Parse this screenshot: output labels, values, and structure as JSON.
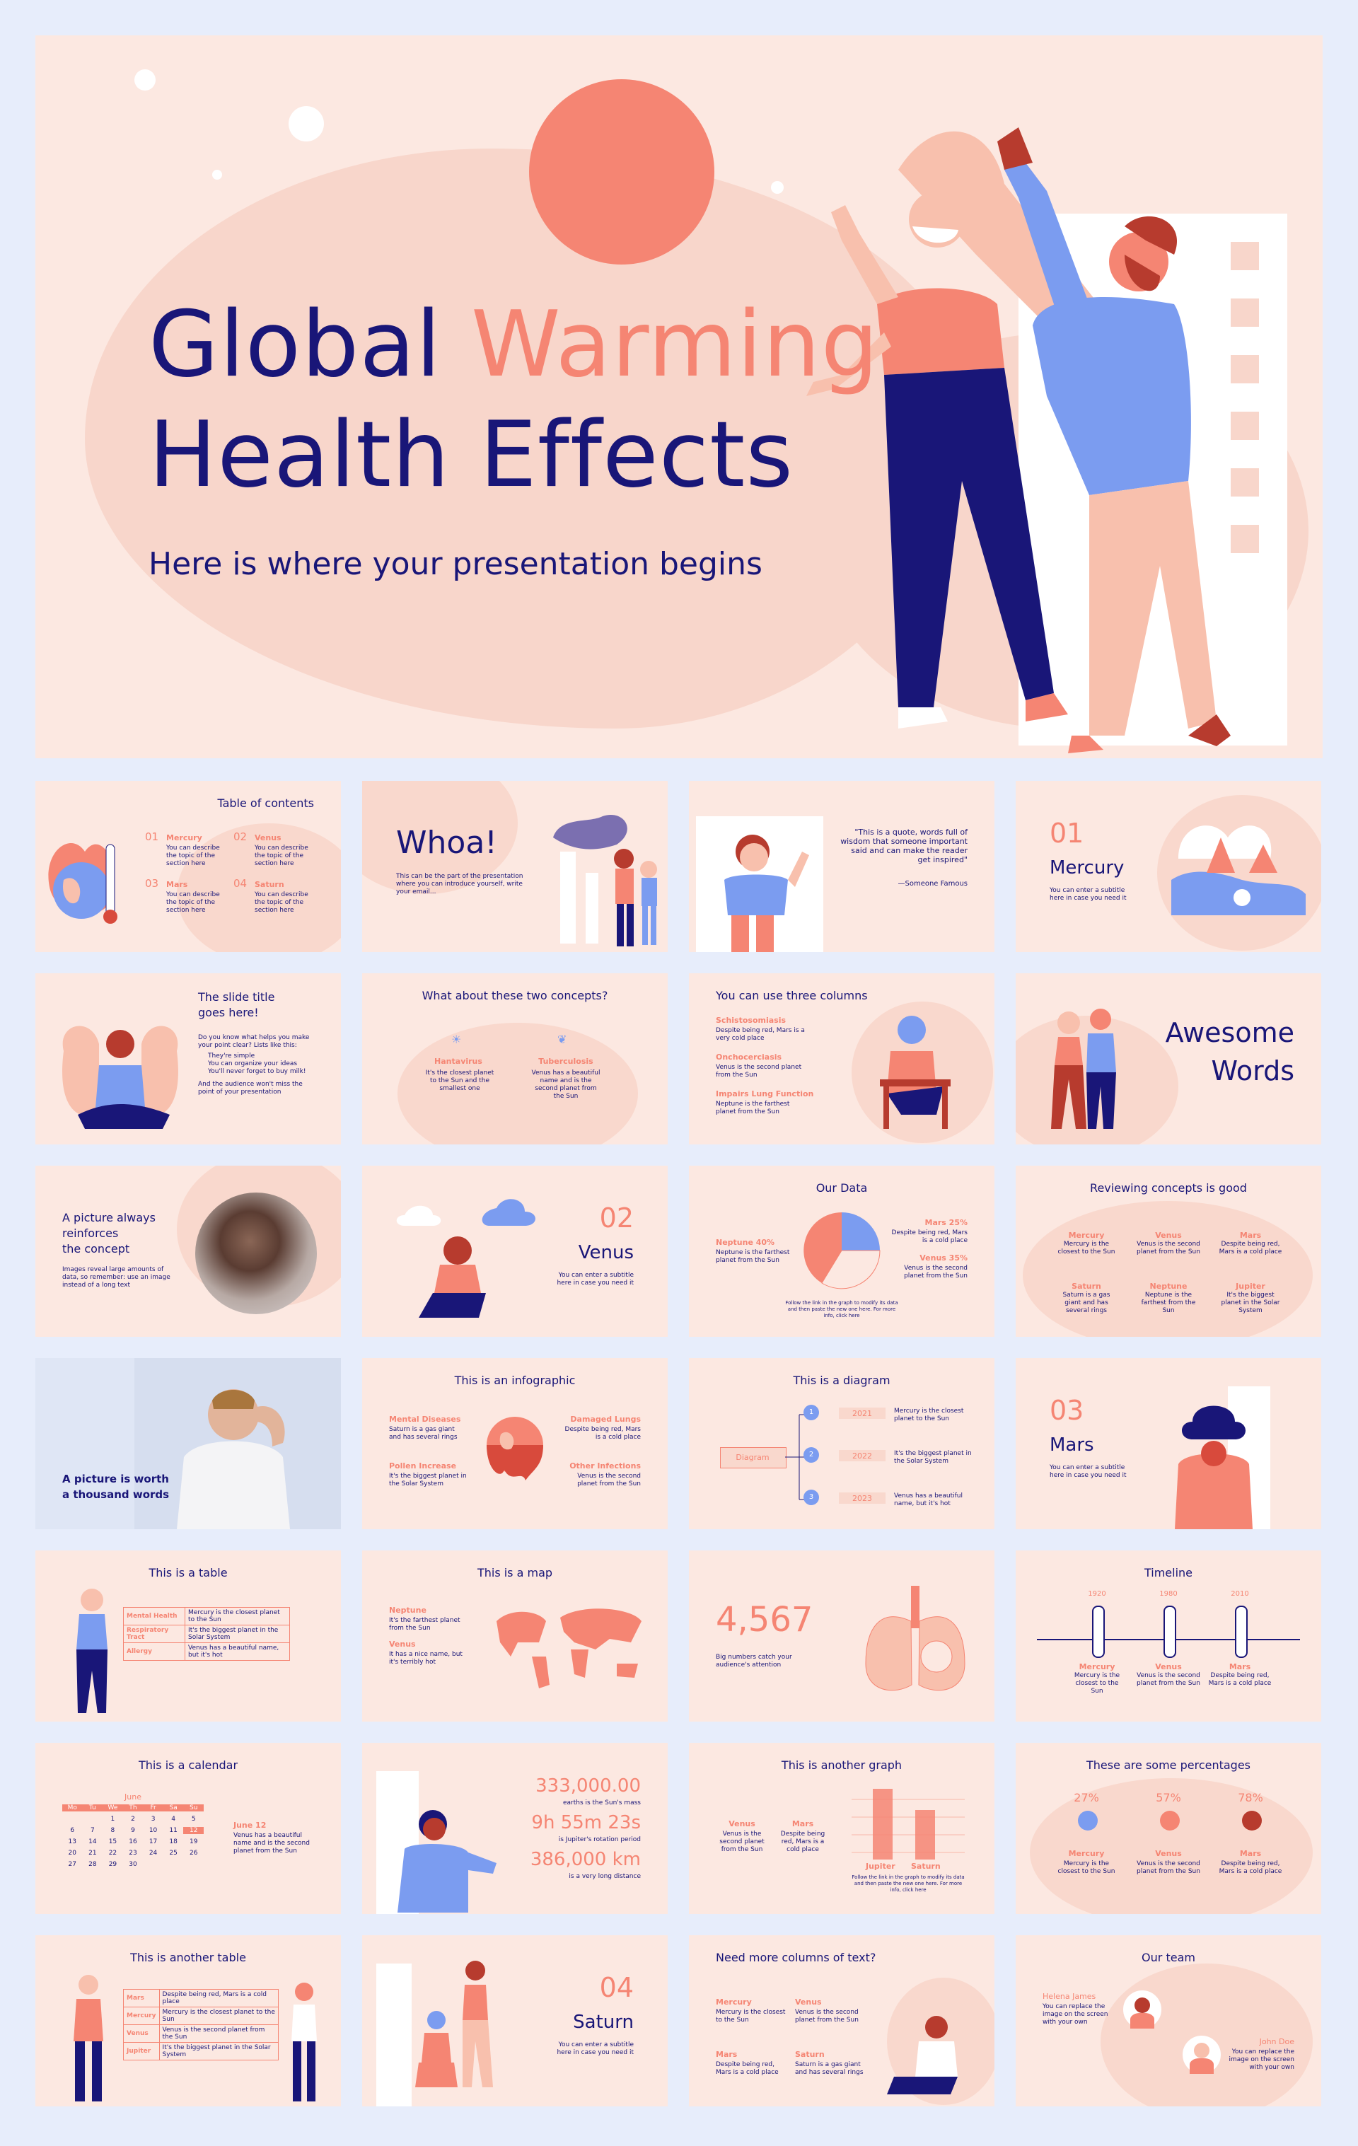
{
  "hero": {
    "title_line1_a": "Global ",
    "title_line1_b": "Warming",
    "title_line2": "Health Effects",
    "subtitle": "Here is where your presentation begins"
  },
  "slides": {
    "toc": {
      "title": "Table of contents",
      "items": [
        {
          "num": "01",
          "label": "Mercury",
          "desc": "You can describe the topic of the section here"
        },
        {
          "num": "02",
          "label": "Venus",
          "desc": "You can describe the topic of the section here"
        },
        {
          "num": "03",
          "label": "Mars",
          "desc": "You can describe the topic of the section here"
        },
        {
          "num": "04",
          "label": "Saturn",
          "desc": "You can describe the topic of the section here"
        }
      ]
    },
    "whoa": {
      "title": "Whoa!",
      "desc": "This can be the part of the presentation where you can introduce yourself, write your email..."
    },
    "quote": {
      "text": "\"This is a quote, words full of wisdom that someone important said and can make the reader get inspired\"",
      "author": "—Someone Famous"
    },
    "sec01": {
      "num": "01",
      "title": "Mercury",
      "desc": "You can enter a subtitle here in case you need it"
    },
    "slidetitle": {
      "title1": "The slide title",
      "title2": "goes here!",
      "intro": "Do you know what helps you make your point clear? Lists like this:",
      "bullets": [
        "They're simple",
        "You can organize your ideas",
        "You'll never forget to buy milk!"
      ],
      "outro": "And the audience won't miss the point of your presentation"
    },
    "twoconcepts": {
      "title": "What about these two concepts?",
      "items": [
        {
          "label": "Hantavirus",
          "desc": "It's the closest planet to the Sun and the smallest one"
        },
        {
          "label": "Tuberculosis",
          "desc": "Venus has a beautiful name and is the second planet from the Sun"
        }
      ]
    },
    "threecols": {
      "title": "You can use three columns",
      "items": [
        {
          "label": "Schistosomiasis",
          "desc": "Despite being red, Mars is a very cold place"
        },
        {
          "label": "Onchocerciasis",
          "desc": "Venus is the second planet from the Sun"
        },
        {
          "label": "Impairs Lung Function",
          "desc": "Neptune is the farthest planet from the Sun"
        }
      ]
    },
    "awesome": {
      "line1": "Awesome",
      "line2": "Words"
    },
    "picture": {
      "title1": "A picture always",
      "title2": "reinforces",
      "title3": "the concept",
      "desc": "Images reveal large amounts of data, so remember: use an image instead of a long text"
    },
    "sec02": {
      "num": "02",
      "title": "Venus",
      "desc": "You can enter a subtitle here in case you need it"
    },
    "ourdata": {
      "title": "Our Data",
      "left_label": "Neptune 40%",
      "left_desc": "Neptune is the farthest planet from the Sun",
      "r1_label": "Mars 25%",
      "r1_desc": "Despite being red, Mars is a cold place",
      "r2_label": "Venus 35%",
      "r2_desc": "Venus is the second planet from the Sun",
      "footer": "Follow the link in the graph to modify its data and then paste the new one here. For more info, click here"
    },
    "reviewing": {
      "title": "Reviewing concepts is good",
      "items": [
        {
          "label": "Mercury",
          "desc": "Mercury is the closest to the Sun"
        },
        {
          "label": "Venus",
          "desc": "Venus is the second planet from the Sun"
        },
        {
          "label": "Mars",
          "desc": "Despite being red, Mars is a cold place"
        },
        {
          "label": "Saturn",
          "desc": "Saturn is a gas giant and has several rings"
        },
        {
          "label": "Neptune",
          "desc": "Neptune is the farthest from the Sun"
        },
        {
          "label": "Jupiter",
          "desc": "It's the biggest planet in the Solar System"
        }
      ]
    },
    "thousand": {
      "line1": "A picture is worth",
      "line2": "a thousand words"
    },
    "infographic": {
      "title": "This is an infographic",
      "items": [
        {
          "label": "Mental Diseases",
          "desc": "Saturn is a gas giant and has several rings"
        },
        {
          "label": "Damaged Lungs",
          "desc": "Despite being red, Mars is a cold place"
        },
        {
          "label": "Pollen Increase",
          "desc": "It's the biggest planet in the Solar System"
        },
        {
          "label": "Other Infections",
          "desc": "Venus is the second planet from the Sun"
        }
      ]
    },
    "diagram": {
      "title": "This is a diagram",
      "root": "Diagram",
      "items": [
        {
          "n": "1",
          "year": "2021",
          "desc": "Mercury is the closest planet to the Sun"
        },
        {
          "n": "2",
          "year": "2022",
          "desc": "It's the biggest planet in the Solar System"
        },
        {
          "n": "3",
          "year": "2023",
          "desc": "Venus has a beautiful name, but it's hot"
        }
      ]
    },
    "sec03": {
      "num": "03",
      "title": "Mars",
      "desc": "You can enter a subtitle here in case you need it"
    },
    "table": {
      "title": "This is a table",
      "rows": [
        {
          "h": "Mental Health",
          "d": "Mercury is the closest planet to the Sun"
        },
        {
          "h": "Respiratory Tract",
          "d": "It's the biggest planet in the Solar System"
        },
        {
          "h": "Allergy",
          "d": "Venus has a beautiful name, but it's hot"
        }
      ]
    },
    "map": {
      "title": "This is a map",
      "items": [
        {
          "label": "Neptune",
          "desc": "It's the farthest planet from the Sun"
        },
        {
          "label": "Venus",
          "desc": "It has a nice name, but it's terribly hot"
        }
      ]
    },
    "bignum": {
      "value": "4,567",
      "desc": "Big numbers catch your audience's attention"
    },
    "timeline": {
      "title": "Timeline",
      "items": [
        {
          "year": "1920",
          "label": "Mercury",
          "desc": "Mercury is the closest to the Sun"
        },
        {
          "year": "1980",
          "label": "Venus",
          "desc": "Venus is the second planet from the Sun"
        },
        {
          "year": "2010",
          "label": "Mars",
          "desc": "Despite being red, Mars is a cold place"
        }
      ]
    },
    "calendar": {
      "title": "This is a calendar",
      "month": "June",
      "days": [
        "Mo",
        "Tu",
        "We",
        "Th",
        "Fr",
        "Sa",
        "Su"
      ],
      "weeks": [
        [
          "",
          "",
          "1",
          "2",
          "3",
          "4",
          "5"
        ],
        [
          "6",
          "7",
          "8",
          "9",
          "10",
          "11",
          "12"
        ],
        [
          "13",
          "14",
          "15",
          "16",
          "17",
          "18",
          "19"
        ],
        [
          "20",
          "21",
          "22",
          "23",
          "24",
          "25",
          "26"
        ],
        [
          "27",
          "28",
          "29",
          "30",
          "",
          "",
          ""
        ]
      ],
      "event_label": "June 12",
      "event_desc": "Venus has a beautiful name and is the second planet from the Sun"
    },
    "numbers": {
      "items": [
        {
          "value": "333,000.00",
          "desc": "earths is the Sun's mass"
        },
        {
          "value": "9h 55m 23s",
          "desc": "is Jupiter's rotation period"
        },
        {
          "value": "386,000 km",
          "desc": "is a very long distance"
        }
      ]
    },
    "anothergraph": {
      "title": "This is another graph",
      "items": [
        {
          "label": "Venus",
          "desc": "Venus is the second planet from the Sun"
        },
        {
          "label": "Mars",
          "desc": "Despite being red, Mars is a cold place"
        }
      ],
      "bar_labels": [
        "Jupiter",
        "Saturn"
      ],
      "footer": "Follow the link in the graph to modify its data and then paste the new one here. For more info, click here"
    },
    "percentages": {
      "title": "These are some percentages",
      "items": [
        {
          "value": "27%",
          "label": "Mercury",
          "desc": "Mercury is the closest to the Sun"
        },
        {
          "value": "57%",
          "label": "Venus",
          "desc": "Venus is the second planet from the Sun"
        },
        {
          "value": "78%",
          "label": "Mars",
          "desc": "Despite being red, Mars is a cold place"
        }
      ]
    },
    "anothertable": {
      "title": "This is another table",
      "rows": [
        {
          "h": "Mars",
          "d": "Despite being red, Mars is a cold place"
        },
        {
          "h": "Mercury",
          "d": "Mercury is the closest planet to the Sun"
        },
        {
          "h": "Venus",
          "d": "Venus is the second planet from the Sun"
        },
        {
          "h": "Jupiter",
          "d": "It's the biggest planet in the Solar System"
        }
      ]
    },
    "sec04": {
      "num": "04",
      "title": "Saturn",
      "desc": "You can enter a subtitle here in case you need it"
    },
    "morecols": {
      "title": "Need more columns of text?",
      "items": [
        {
          "label": "Mercury",
          "desc": "Mercury is the closest to the Sun"
        },
        {
          "label": "Venus",
          "desc": "Venus is the second planet from the Sun"
        },
        {
          "label": "Mars",
          "desc": "Despite being red, Mars is a cold place"
        },
        {
          "label": "Saturn",
          "desc": "Saturn is a gas giant and has several rings"
        }
      ]
    },
    "team": {
      "title": "Our team",
      "members": [
        {
          "name": "Helena James",
          "desc": "You can replace the image on the screen with your own"
        },
        {
          "name": "John Doe",
          "desc": "You can replace the image on the screen with your own"
        }
      ]
    }
  },
  "colors": {
    "navy": "#191678",
    "coral": "#f58573",
    "peach": "#fce8e1",
    "blue": "#7b9cf0"
  }
}
